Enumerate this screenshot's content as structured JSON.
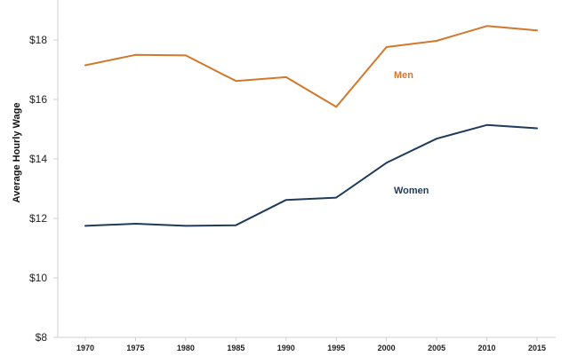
{
  "chart_data": {
    "type": "line",
    "title": "",
    "xlabel": "",
    "ylabel": "Average Hourly Wage",
    "x": [
      1970,
      1975,
      1980,
      1985,
      1990,
      1995,
      2000,
      2005,
      2010,
      2015
    ],
    "x_tick_labels": [
      "1970",
      "1975",
      "1980",
      "1985",
      "1990",
      "1995",
      "2000",
      "2005",
      "2010",
      "2015"
    ],
    "ylim": [
      8,
      19
    ],
    "y_ticks": [
      8,
      10,
      12,
      14,
      16,
      18
    ],
    "y_tick_labels": [
      "$8",
      "$10",
      "$12",
      "$14",
      "$16",
      "$18"
    ],
    "grid": false,
    "legend": "inline labels",
    "series": [
      {
        "name": "Men",
        "color": "#d2782c",
        "values": [
          17.15,
          17.5,
          17.48,
          16.62,
          16.75,
          15.75,
          17.76,
          17.97,
          18.47,
          18.32
        ]
      },
      {
        "name": "Women",
        "color": "#1f3b5a",
        "values": [
          11.75,
          11.82,
          11.75,
          11.77,
          12.62,
          12.7,
          13.87,
          14.68,
          15.14,
          15.03
        ]
      }
    ]
  }
}
